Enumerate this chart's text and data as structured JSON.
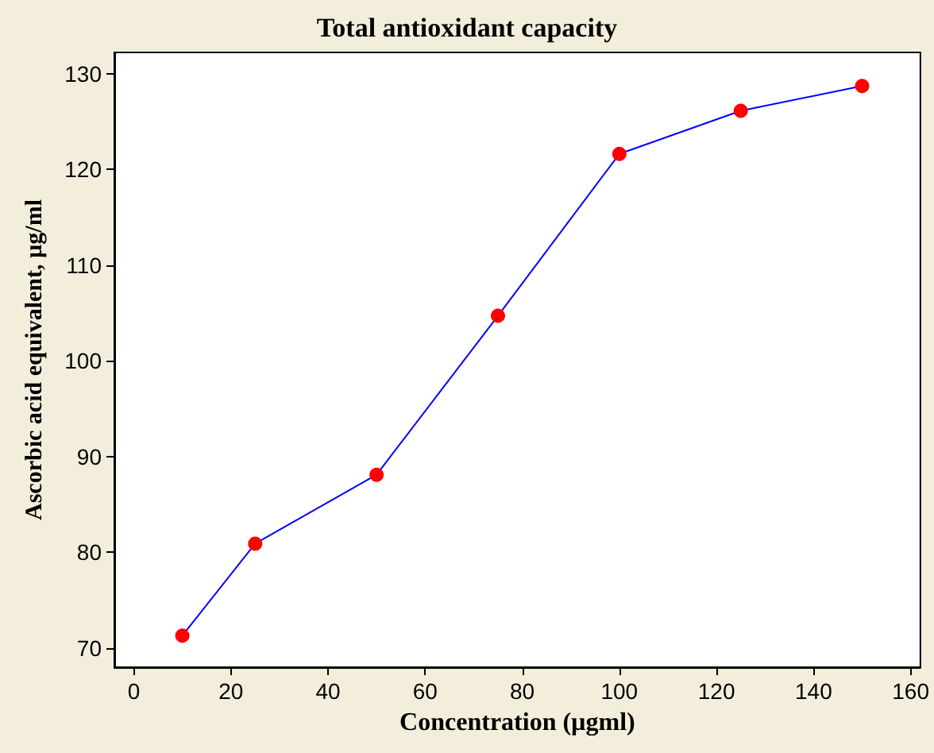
{
  "chart_data": {
    "type": "line",
    "title": "Total antioxidant capacity",
    "xlabel": "Concentration (µgml)",
    "ylabel": "Ascorbic acid equivalent, µg/ml",
    "x": [
      10,
      25,
      50,
      75,
      100,
      125,
      150
    ],
    "series": [
      {
        "color": "#0000ff",
        "values": [
          71.3,
          80.9,
          88.1,
          104.7,
          121.6,
          126.1,
          128.7
        ]
      }
    ],
    "xlim": [
      -4,
      162
    ],
    "ylim": [
      68,
      132.2
    ],
    "xticks": [
      0,
      20,
      40,
      60,
      80,
      100,
      120,
      140,
      160
    ],
    "yticks": [
      70,
      80,
      90,
      100,
      110,
      120,
      130
    ],
    "marker": "circle",
    "line_style": "solid",
    "grid": false
  }
}
